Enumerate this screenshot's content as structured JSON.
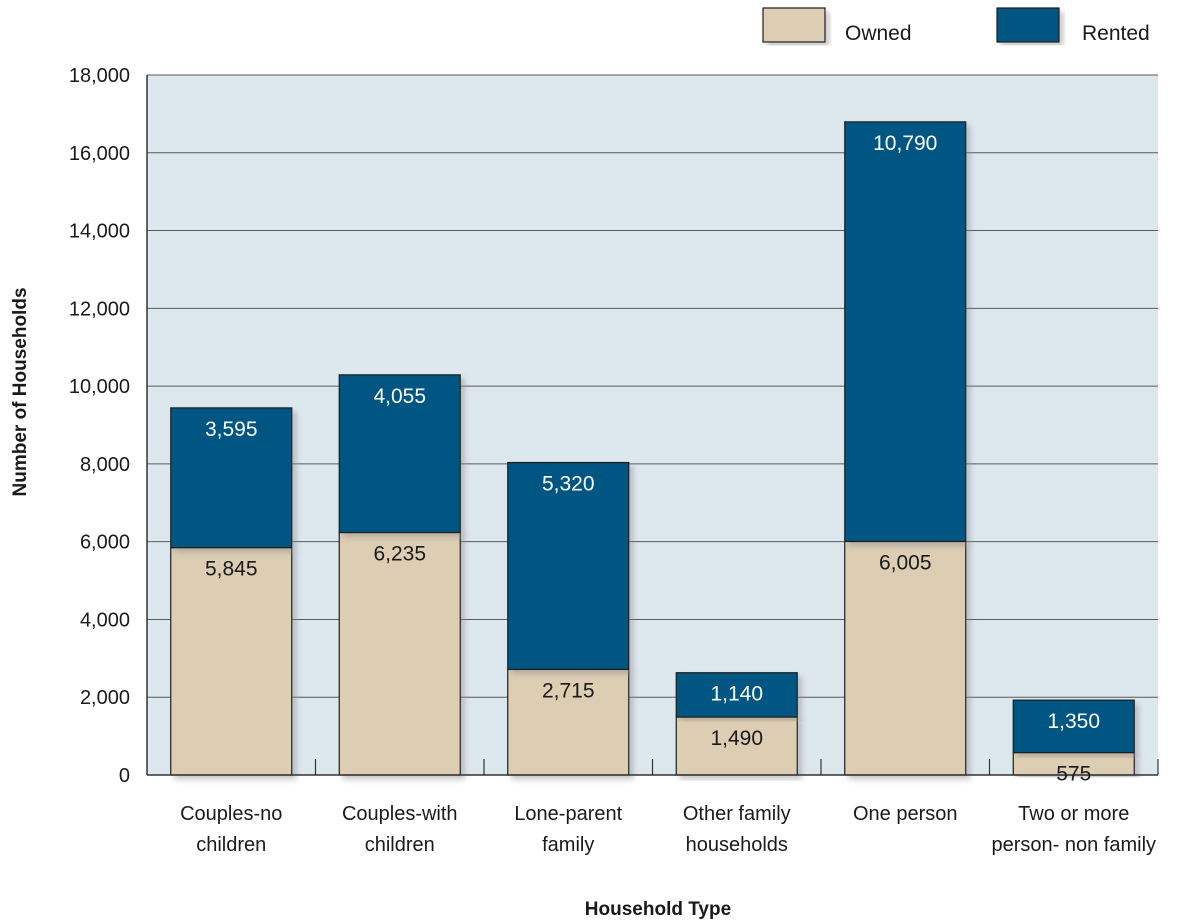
{
  "chart_data": {
    "type": "bar",
    "stacked": true,
    "categories": [
      [
        "Couples-no",
        "children"
      ],
      [
        "Couples-with",
        "children"
      ],
      [
        "Lone-parent",
        "family"
      ],
      [
        "Other family",
        "households"
      ],
      [
        "One person"
      ],
      [
        "Two or more",
        "person- non family"
      ]
    ],
    "series": [
      {
        "name": "Owned",
        "color": "#dccdb3",
        "label_color": "#1a1a1a",
        "values": [
          5845,
          6235,
          2715,
          1490,
          6005,
          575
        ],
        "labels": [
          "5,845",
          "6,235",
          "2,715",
          "1,490",
          "6,005",
          "575"
        ]
      },
      {
        "name": "Rented",
        "color": "#045683",
        "label_color": "#ffffff",
        "values": [
          3595,
          4055,
          5320,
          1140,
          10790,
          1350
        ],
        "labels": [
          "3,595",
          "4,055",
          "5,320",
          "1,140",
          "10,790",
          "1,350"
        ]
      }
    ],
    "xlabel": "Household Type",
    "ylabel": "Number of Households",
    "ylim": [
      0,
      18000
    ],
    "yticks": [
      0,
      2000,
      4000,
      6000,
      8000,
      10000,
      12000,
      14000,
      16000,
      18000
    ],
    "ytick_labels": [
      "0",
      "2,000",
      "4,000",
      "6,000",
      "8,000",
      "10,000",
      "12,000",
      "14,000",
      "16,000",
      "18,000"
    ],
    "grid": true,
    "legend": "top-right",
    "plot_background": "#dde7ee"
  }
}
